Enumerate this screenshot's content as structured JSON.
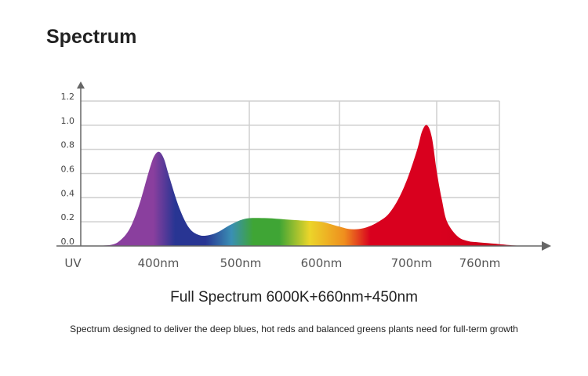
{
  "header": {
    "title": "Spectrum"
  },
  "chart_data": {
    "type": "area",
    "title": "Full Spectrum 6000K+660nm+450nm",
    "xlabel": "",
    "ylabel": "",
    "ylim": [
      0,
      1.2
    ],
    "y_ticks": [
      "1.2",
      "1.0",
      "0.8",
      "0.6",
      "0.4",
      "0.2",
      "0.0"
    ],
    "x_ticks": [
      "UV",
      "400nm",
      "500nm",
      "600nm",
      "700nm",
      "760nm"
    ],
    "grid": true,
    "series": [
      {
        "x": [
          340,
          360,
          370,
          380,
          390,
          400,
          405,
          410,
          415,
          420,
          430,
          440,
          450,
          460,
          470,
          480,
          490,
          500,
          520,
          540,
          560,
          580,
          600,
          610,
          620,
          630,
          640,
          650,
          660,
          670,
          680,
          685,
          690,
          695,
          700,
          705,
          710,
          720,
          730,
          740,
          760,
          780,
          800
        ],
        "values": [
          0.0,
          0.01,
          0.05,
          0.15,
          0.35,
          0.62,
          0.74,
          0.78,
          0.72,
          0.58,
          0.32,
          0.15,
          0.09,
          0.09,
          0.12,
          0.17,
          0.21,
          0.23,
          0.23,
          0.22,
          0.21,
          0.2,
          0.16,
          0.14,
          0.14,
          0.16,
          0.2,
          0.26,
          0.38,
          0.56,
          0.8,
          0.95,
          1.0,
          0.9,
          0.62,
          0.38,
          0.2,
          0.08,
          0.04,
          0.03,
          0.015,
          0.005,
          0.0
        ]
      }
    ],
    "colors": {
      "violet": "#8a3f9e",
      "blue": "#283593",
      "cyan": "#3a8fb4",
      "green": "#3fa535",
      "yellow": "#ecd52a",
      "orange": "#ef8e1e",
      "red": "#d9001e",
      "deep_red": "#c40018",
      "grid": "#cfcfcf",
      "axis": "#666666"
    }
  },
  "caption": "Spectrum designed to deliver the deep blues, hot reds and balanced greens plants need for full-term growth"
}
